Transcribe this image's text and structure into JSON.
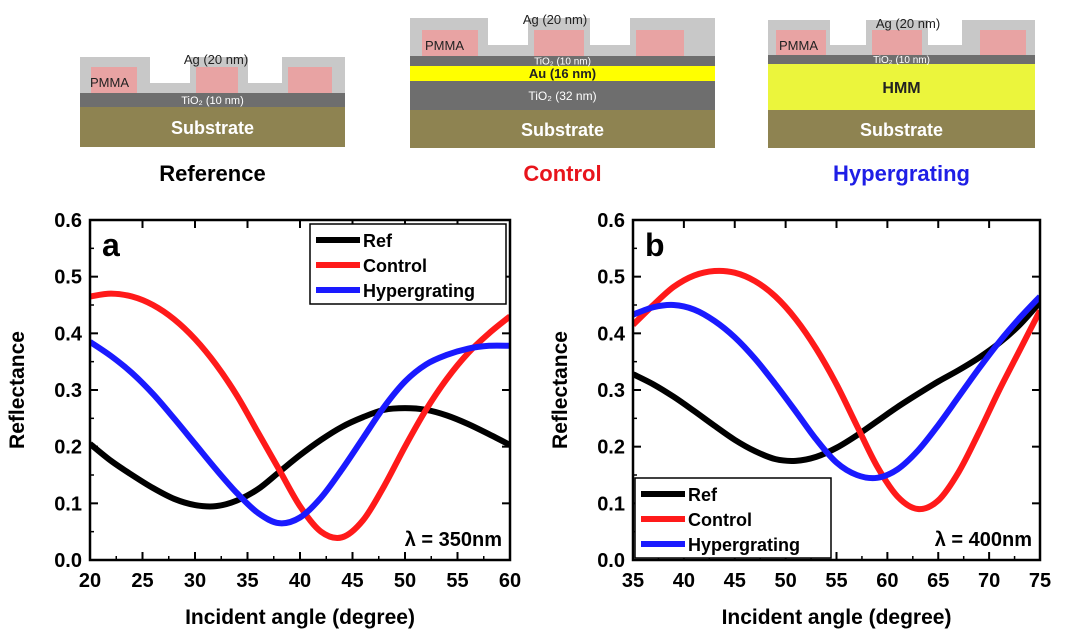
{
  "diagrams": [
    {
      "caption": "Reference",
      "caption_color": "#000000",
      "layers": {
        "top_metal": "Ag (20 nm)",
        "resist": "PMMA",
        "tio2": "TiO₂ (10 nm)",
        "substrate": "Substrate"
      }
    },
    {
      "caption": "Control",
      "caption_color": "#e8141b",
      "layers": {
        "top_metal": "Ag (20 nm)",
        "resist": "PMMA",
        "tio2_top": "TiO₂ (10 nm)",
        "gold": "Au (16 nm)",
        "tio2_bottom": "TiO₂ (32 nm)",
        "substrate": "Substrate"
      }
    },
    {
      "caption": "Hypergrating",
      "caption_color": "#1e1ee6",
      "layers": {
        "top_metal": "Ag (20 nm)",
        "resist": "PMMA",
        "tio2": "TiO₂ (10 nm)",
        "hmm": "HMM",
        "substrate": "Substrate"
      }
    }
  ],
  "colors": {
    "substrate": "#8e8351",
    "tio2": "#6e6e6e",
    "silver": "#c8c8c8",
    "pmma": "#e8a3a3",
    "gold": "#ffff00",
    "hmm": "#ebf53c",
    "ref": "#000000",
    "control": "#ff1a1a",
    "hypergrating": "#1a1aff"
  },
  "chart_data": [
    {
      "type": "line",
      "panel_label": "a",
      "annotation": "λ = 350nm",
      "xlabel": "Incident angle (degree)",
      "ylabel": "Reflectance",
      "xlim": [
        20,
        60
      ],
      "ylim": [
        0.0,
        0.6
      ],
      "xticks": [
        "20",
        "25",
        "30",
        "35",
        "40",
        "45",
        "50",
        "55",
        "60"
      ],
      "yticks": [
        "0.0",
        "0.1",
        "0.2",
        "0.3",
        "0.4",
        "0.5",
        "0.6"
      ],
      "legend_position": "top-right",
      "series": [
        {
          "name": "Ref",
          "color_key": "ref",
          "x": [
            20,
            22,
            24,
            26,
            28,
            30,
            32,
            34,
            36,
            38,
            40,
            42,
            44,
            46,
            48,
            50,
            52,
            54,
            56,
            58,
            60
          ],
          "y": [
            0.205,
            0.175,
            0.15,
            0.127,
            0.108,
            0.097,
            0.095,
            0.105,
            0.125,
            0.155,
            0.185,
            0.212,
            0.235,
            0.252,
            0.265,
            0.268,
            0.265,
            0.255,
            0.24,
            0.222,
            0.203
          ]
        },
        {
          "name": "Control",
          "color_key": "control",
          "x": [
            20,
            22,
            24,
            26,
            28,
            30,
            32,
            34,
            36,
            38,
            40,
            42,
            44,
            46,
            48,
            50,
            52,
            54,
            56,
            58,
            60
          ],
          "y": [
            0.465,
            0.47,
            0.465,
            0.45,
            0.425,
            0.39,
            0.345,
            0.29,
            0.225,
            0.16,
            0.095,
            0.05,
            0.04,
            0.07,
            0.13,
            0.2,
            0.265,
            0.32,
            0.365,
            0.4,
            0.43
          ]
        },
        {
          "name": "Hypergrating",
          "color_key": "hypergrating",
          "x": [
            20,
            22,
            24,
            26,
            28,
            30,
            32,
            34,
            36,
            38,
            40,
            42,
            44,
            46,
            48,
            50,
            52,
            54,
            56,
            58,
            60
          ],
          "y": [
            0.385,
            0.36,
            0.33,
            0.293,
            0.25,
            0.205,
            0.16,
            0.118,
            0.083,
            0.065,
            0.075,
            0.11,
            0.16,
            0.215,
            0.27,
            0.315,
            0.345,
            0.362,
            0.373,
            0.378,
            0.378
          ]
        }
      ]
    },
    {
      "type": "line",
      "panel_label": "b",
      "annotation": "λ = 400nm",
      "xlabel": "Incident angle (degree)",
      "ylabel": "Reflectance",
      "xlim": [
        35,
        75
      ],
      "ylim": [
        0.0,
        0.6
      ],
      "xticks": [
        "35",
        "40",
        "45",
        "50",
        "55",
        "60",
        "65",
        "70",
        "75"
      ],
      "yticks": [
        "0.0",
        "0.1",
        "0.2",
        "0.3",
        "0.4",
        "0.5",
        "0.6"
      ],
      "legend_position": "bottom-left",
      "series": [
        {
          "name": "Ref",
          "color_key": "ref",
          "x": [
            35,
            37,
            39,
            41,
            43,
            45,
            47,
            49,
            51,
            53,
            55,
            57,
            59,
            61,
            63,
            65,
            67,
            69,
            71,
            73,
            75
          ],
          "y": [
            0.328,
            0.31,
            0.288,
            0.263,
            0.237,
            0.212,
            0.192,
            0.178,
            0.175,
            0.182,
            0.198,
            0.22,
            0.245,
            0.27,
            0.293,
            0.315,
            0.335,
            0.357,
            0.383,
            0.415,
            0.455
          ]
        },
        {
          "name": "Control",
          "color_key": "control",
          "x": [
            35,
            37,
            39,
            41,
            43,
            45,
            47,
            49,
            51,
            53,
            55,
            57,
            59,
            61,
            63,
            65,
            67,
            69,
            71,
            73,
            75
          ],
          "y": [
            0.415,
            0.45,
            0.482,
            0.502,
            0.51,
            0.507,
            0.492,
            0.465,
            0.425,
            0.373,
            0.31,
            0.237,
            0.165,
            0.112,
            0.09,
            0.105,
            0.155,
            0.225,
            0.3,
            0.37,
            0.44
          ]
        },
        {
          "name": "Hypergrating",
          "color_key": "hypergrating",
          "x": [
            35,
            37,
            39,
            41,
            43,
            45,
            47,
            49,
            51,
            53,
            55,
            57,
            59,
            61,
            63,
            65,
            67,
            69,
            71,
            73,
            75
          ],
          "y": [
            0.433,
            0.446,
            0.45,
            0.442,
            0.422,
            0.393,
            0.355,
            0.31,
            0.262,
            0.213,
            0.172,
            0.15,
            0.145,
            0.16,
            0.193,
            0.238,
            0.288,
            0.338,
            0.385,
            0.427,
            0.465
          ]
        }
      ]
    }
  ]
}
